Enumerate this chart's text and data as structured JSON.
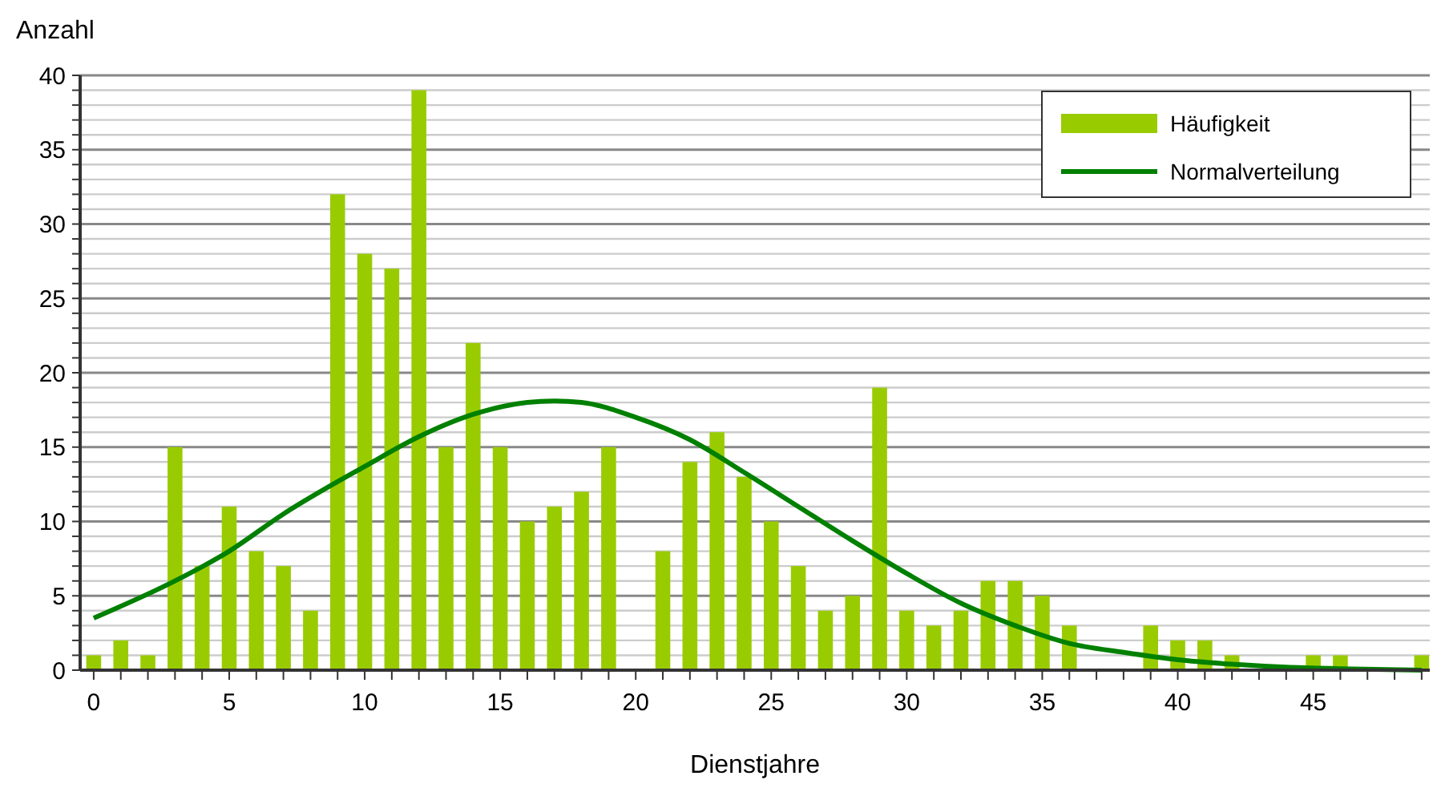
{
  "chart_data": {
    "type": "bar",
    "xlabel": "Dienstjahre",
    "ylabel": "Anzahl",
    "xlim": [
      -0.5,
      49.3
    ],
    "ylim": [
      0,
      40
    ],
    "xticks": [
      0,
      {
        "value": 1,
        "label": null
      },
      {
        "value": 2,
        "label": null
      },
      {
        "value": 3,
        "label": null
      },
      {
        "value": 4,
        "label": null
      },
      5,
      {
        "value": 6,
        "label": null
      },
      {
        "value": 7,
        "label": null
      },
      {
        "value": 8,
        "label": null
      },
      {
        "value": 9,
        "label": null
      },
      10,
      {
        "value": 11,
        "label": null
      },
      {
        "value": 12,
        "label": null
      },
      {
        "value": 13,
        "label": null
      },
      {
        "value": 14,
        "label": null
      },
      15,
      {
        "value": 16,
        "label": null
      },
      {
        "value": 17,
        "label": null
      },
      {
        "value": 18,
        "label": null
      },
      {
        "value": 19,
        "label": null
      },
      20,
      {
        "value": 21,
        "label": null
      },
      {
        "value": 22,
        "label": null
      },
      {
        "value": 23,
        "label": null
      },
      {
        "value": 24,
        "label": null
      },
      25,
      {
        "value": 26,
        "label": null
      },
      {
        "value": 27,
        "label": null
      },
      {
        "value": 28,
        "label": null
      },
      {
        "value": 29,
        "label": null
      },
      30,
      {
        "value": 31,
        "label": null
      },
      {
        "value": 32,
        "label": null
      },
      {
        "value": 33,
        "label": null
      },
      {
        "value": 34,
        "label": null
      },
      35,
      {
        "value": 36,
        "label": null
      },
      {
        "value": 37,
        "label": null
      },
      {
        "value": 38,
        "label": null
      },
      {
        "value": 39,
        "label": null
      },
      40,
      {
        "value": 41,
        "label": null
      },
      {
        "value": 42,
        "label": null
      },
      {
        "value": 43,
        "label": null
      },
      {
        "value": 44,
        "label": null
      },
      45,
      {
        "value": 46,
        "label": null
      },
      {
        "value": 47,
        "label": null
      },
      {
        "value": 48,
        "label": null
      },
      {
        "value": 49,
        "label": null
      }
    ],
    "yticks": [
      0,
      {
        "value": 1,
        "label": null
      },
      {
        "value": 2,
        "label": null
      },
      {
        "value": 3,
        "label": null
      },
      {
        "value": 4,
        "label": null
      },
      5,
      {
        "value": 6,
        "label": null
      },
      {
        "value": 7,
        "label": null
      },
      {
        "value": 8,
        "label": null
      },
      {
        "value": 9,
        "label": null
      },
      10,
      {
        "value": 11,
        "label": null
      },
      {
        "value": 12,
        "label": null
      },
      {
        "value": 13,
        "label": null
      },
      {
        "value": 14,
        "label": null
      },
      15,
      {
        "value": 16,
        "label": null
      },
      {
        "value": 17,
        "label": null
      },
      {
        "value": 18,
        "label": null
      },
      {
        "value": 19,
        "label": null
      },
      20,
      {
        "value": 21,
        "label": null
      },
      {
        "value": 22,
        "label": null
      },
      {
        "value": 23,
        "label": null
      },
      {
        "value": 24,
        "label": null
      },
      25,
      {
        "value": 26,
        "label": null
      },
      {
        "value": 27,
        "label": null
      },
      {
        "value": 28,
        "label": null
      },
      {
        "value": 29,
        "label": null
      },
      30,
      {
        "value": 31,
        "label": null
      },
      {
        "value": 32,
        "label": null
      },
      {
        "value": 33,
        "label": null
      },
      {
        "value": 34,
        "label": null
      },
      35,
      {
        "value": 36,
        "label": null
      },
      {
        "value": 37,
        "label": null
      },
      {
        "value": 38,
        "label": null
      },
      {
        "value": 39,
        "label": null
      },
      40
    ],
    "grid": "y",
    "legend": "top right",
    "series": [
      {
        "name": "Häufigkeit",
        "color": "#99cc00",
        "x": [
          0,
          1,
          2,
          3,
          4,
          5,
          6,
          7,
          8,
          9,
          10,
          11,
          12,
          13,
          14,
          15,
          16,
          17,
          18,
          19,
          20,
          21,
          22,
          23,
          24,
          25,
          26,
          27,
          28,
          29,
          30,
          31,
          32,
          33,
          34,
          35,
          36,
          37,
          38,
          39,
          40,
          41,
          42,
          43,
          44,
          45,
          46,
          47,
          48,
          49
        ],
        "values": [
          1,
          2,
          1,
          15,
          7,
          11,
          8,
          7,
          4,
          32,
          28,
          27,
          39,
          15,
          22,
          15,
          10,
          11,
          12,
          15,
          0,
          8,
          14,
          16,
          13,
          10,
          7,
          4,
          5,
          19,
          4,
          3,
          4,
          6,
          6,
          5,
          3,
          0,
          0,
          3,
          2,
          2,
          1,
          0,
          0,
          1,
          1,
          0,
          0,
          1
        ]
      },
      {
        "name": "Normalverteilung",
        "type": "line",
        "color": "#008000",
        "x": [
          0,
          3,
          5,
          7,
          10,
          12,
          14,
          16,
          17,
          18,
          20,
          22,
          24,
          26,
          28,
          30,
          32,
          34,
          36,
          38,
          40,
          42,
          44,
          46,
          49
        ],
        "values": [
          3.5,
          6,
          8,
          10.5,
          13.7,
          15.7,
          17.2,
          18,
          18.1,
          18,
          17,
          15.5,
          13.3,
          11,
          8.7,
          6.5,
          4.5,
          3,
          1.8,
          1.2,
          0.7,
          0.4,
          0.2,
          0.1,
          0
        ]
      }
    ]
  }
}
